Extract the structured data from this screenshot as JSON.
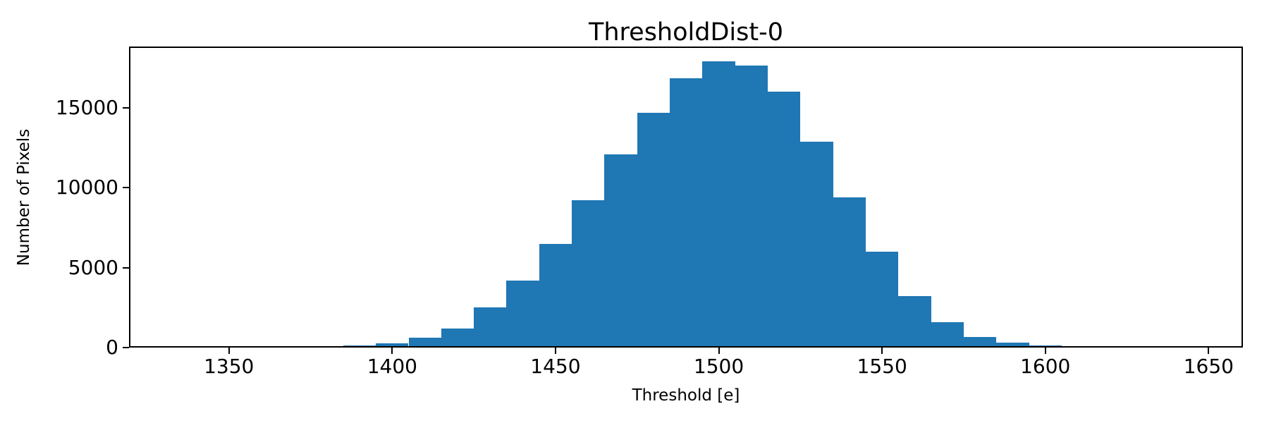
{
  "figure": {
    "background_color": "#ffffff",
    "frame_color": "#000000",
    "text_color": "#000000"
  },
  "chart_data": {
    "type": "bar",
    "subtype": "histogram",
    "title": "ThresholdDist-0",
    "xlabel": "Threshold [e]",
    "ylabel": "Number of Pixels",
    "bar_color": "#1f77b4",
    "bin_width": 10,
    "bin_edges": [
      1335,
      1345,
      1355,
      1365,
      1375,
      1385,
      1395,
      1405,
      1415,
      1425,
      1435,
      1445,
      1455,
      1465,
      1475,
      1485,
      1495,
      1505,
      1515,
      1525,
      1535,
      1545,
      1555,
      1565,
      1575,
      1585,
      1595,
      1605,
      1615,
      1625
    ],
    "values": [
      40,
      50,
      60,
      70,
      80,
      150,
      250,
      600,
      1200,
      2500,
      4200,
      6500,
      9200,
      12100,
      14700,
      16850,
      17900,
      17650,
      16000,
      12900,
      9400,
      6000,
      3200,
      1600,
      650,
      330,
      150,
      60,
      40
    ],
    "xlim": [
      1319.4,
      1660.5
    ],
    "ylim": [
      0,
      18840
    ],
    "xticks": [
      1350,
      1400,
      1450,
      1500,
      1550,
      1600,
      1650
    ],
    "yticks": [
      0,
      5000,
      10000,
      15000
    ],
    "grid": false,
    "legend": null
  }
}
